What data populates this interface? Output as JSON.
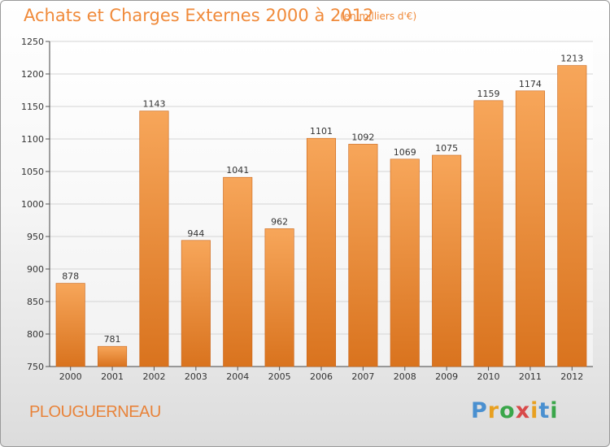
{
  "header": {
    "title": "Achats et Charges Externes 2000 à 2012",
    "subtitle": "(en milliers d'€)"
  },
  "footer": {
    "place": "PLOUGUERNEAU",
    "logo": [
      "P",
      "r",
      "o",
      "x",
      "i",
      "t",
      "i"
    ]
  },
  "chart_data": {
    "type": "bar",
    "title": "Achats et Charges Externes 2000 à 2012",
    "categories": [
      "2000",
      "2001",
      "2002",
      "2003",
      "2004",
      "2005",
      "2006",
      "2007",
      "2008",
      "2009",
      "2010",
      "2011",
      "2012"
    ],
    "values": [
      878,
      781,
      1143,
      944,
      1041,
      962,
      1101,
      1092,
      1069,
      1075,
      1159,
      1174,
      1213
    ],
    "ylim": [
      750,
      1250
    ],
    "yticks": [
      750,
      800,
      850,
      900,
      950,
      1000,
      1050,
      1100,
      1150,
      1200,
      1250
    ],
    "grid": true,
    "colors": {
      "bar_top": "#f7a65a",
      "bar_bottom": "#d9731e",
      "bar_edge": "#c9651a"
    }
  }
}
